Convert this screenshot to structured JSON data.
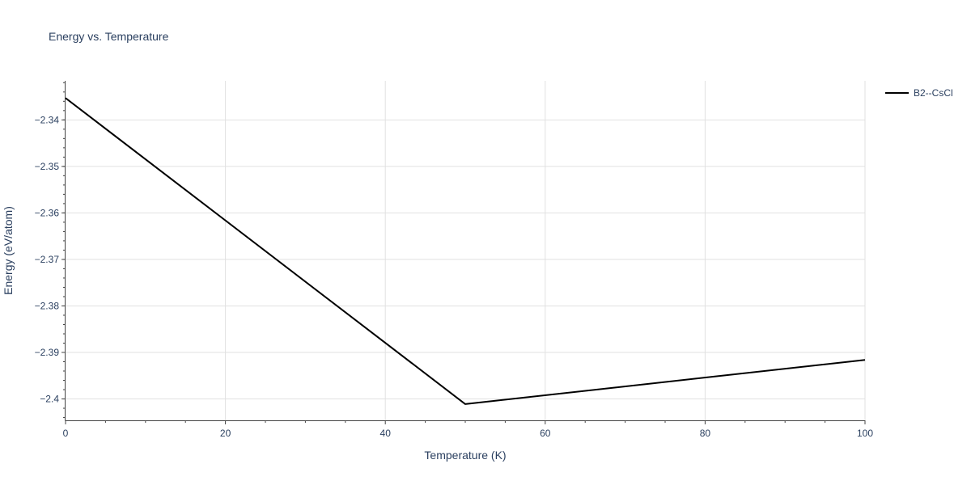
{
  "chart_data": {
    "type": "line",
    "title": "Energy vs. Temperature",
    "xlabel": "Temperature (K)",
    "ylabel": "Energy (eV/atom)",
    "xlim": [
      0,
      100
    ],
    "ylim": [
      -2.4046,
      -2.3316
    ],
    "x_ticks": [
      0,
      20,
      40,
      60,
      80,
      100
    ],
    "x_tick_labels": [
      "0",
      "20",
      "40",
      "60",
      "80",
      "100"
    ],
    "x_minor_step": 5,
    "y_ticks": [
      -2.34,
      -2.35,
      -2.36,
      -2.37,
      -2.38,
      -2.39,
      -2.4
    ],
    "y_tick_labels": [
      "−2.34",
      "−2.35",
      "−2.36",
      "−2.37",
      "−2.38",
      "−2.39",
      "−2.4"
    ],
    "y_minor_step": 0.002,
    "grid": true,
    "legend_position": "top-right",
    "series": [
      {
        "name": "B2--CsCl",
        "color": "#000000",
        "x": [
          0,
          50,
          100
        ],
        "y": [
          -2.3353,
          -2.4011,
          -2.3916
        ]
      }
    ]
  }
}
